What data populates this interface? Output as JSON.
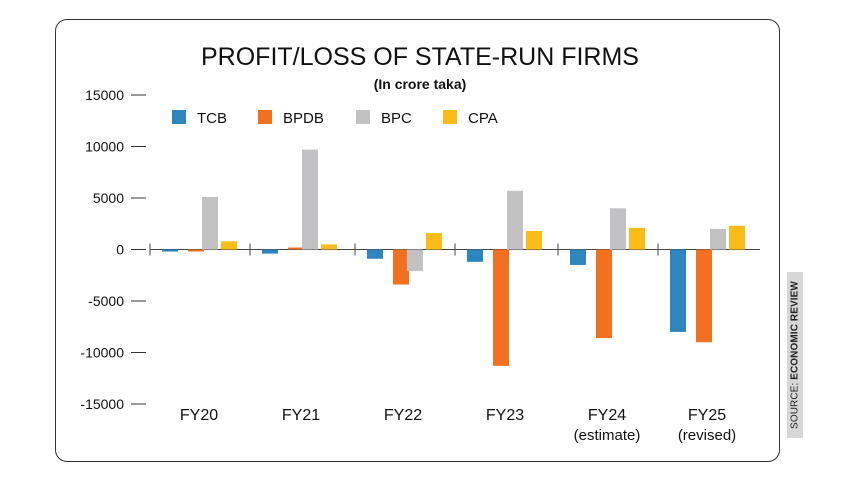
{
  "source": {
    "prefix": "SOURCE:",
    "name": "ECONOMIC REVIEW"
  },
  "colors": {
    "TCB": "#2e86c1",
    "BPDB": "#f37021",
    "BPC": "#c2c2c4",
    "CPA": "#fcbc18"
  },
  "chart_data": {
    "type": "bar",
    "title": "PROFIT/LOSS OF STATE-RUN FIRMS",
    "subtitle": "(In crore taka)",
    "xlabel": "",
    "ylabel": "",
    "ylim": [
      -15000,
      15000
    ],
    "yticks": [
      "15000",
      "10000",
      "5000",
      "0",
      "-5000",
      "-10000",
      "-15000"
    ],
    "ytick_values": [
      15000,
      10000,
      5000,
      0,
      -5000,
      -10000,
      -15000
    ],
    "categories": [
      {
        "label": "FY20",
        "sublabel": ""
      },
      {
        "label": "FY21",
        "sublabel": ""
      },
      {
        "label": "FY22",
        "sublabel": ""
      },
      {
        "label": "FY23",
        "sublabel": ""
      },
      {
        "label": "FY24",
        "sublabel": "(estimate)"
      },
      {
        "label": "FY25",
        "sublabel": "(revised)"
      }
    ],
    "legend_position": "top-left",
    "series": [
      {
        "name": "TCB",
        "values": [
          -200,
          -400,
          -900,
          -1200,
          -1500,
          -8000
        ]
      },
      {
        "name": "BPDB",
        "values": [
          -50,
          100,
          -3400,
          -11300,
          -8600,
          -9000
        ]
      },
      {
        "name": "BPC",
        "values": [
          5100,
          9700,
          -2100,
          5700,
          4000,
          2000
        ]
      },
      {
        "name": "CPA",
        "values": [
          800,
          500,
          1600,
          1800,
          2100,
          2300
        ]
      }
    ]
  }
}
